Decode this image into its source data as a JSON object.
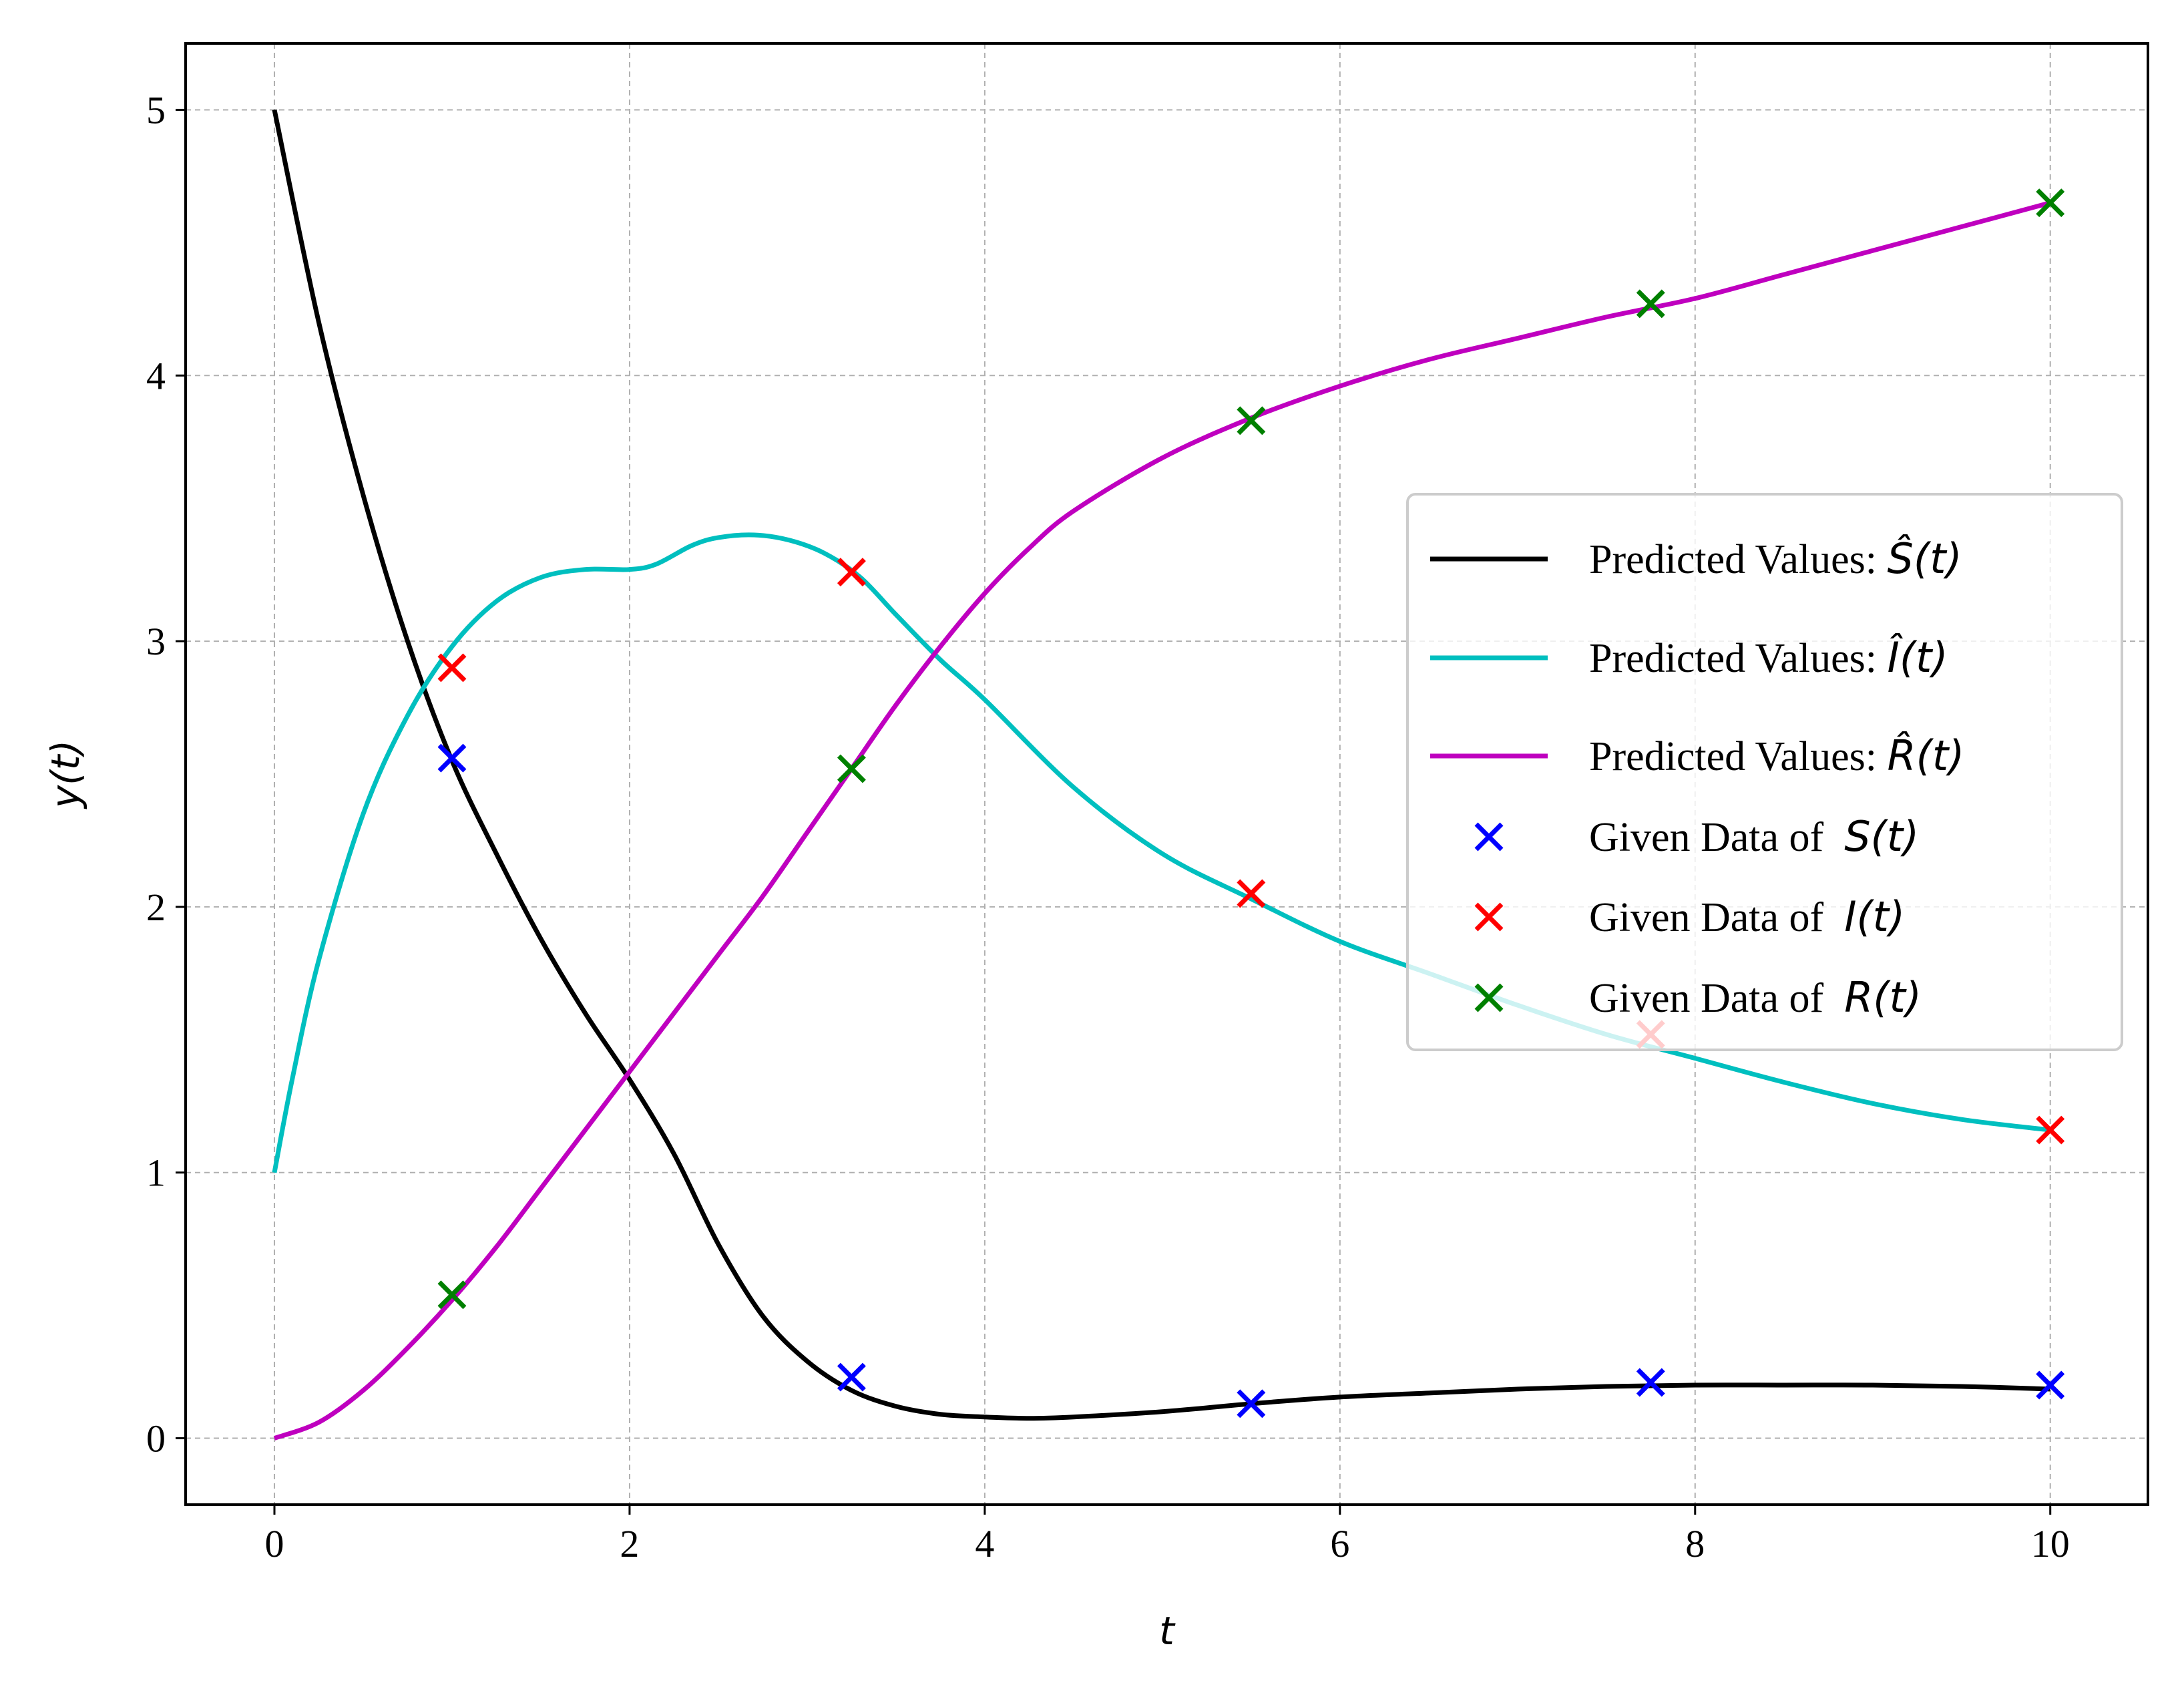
{
  "chart_data": {
    "type": "line",
    "xlabel": "t",
    "ylabel": "y(t)",
    "xlim": [
      -0.5,
      10.55
    ],
    "ylim": [
      -0.25,
      5.25
    ],
    "xticks": [
      0,
      2,
      4,
      6,
      8,
      10
    ],
    "yticks": [
      0,
      1,
      2,
      3,
      4,
      5
    ],
    "grid": true,
    "legend_position": "center-right",
    "series": [
      {
        "name": "Predicted Values: Ŝ(t)",
        "label_prefix": "Predicted Values:",
        "label_math": "Ŝ(t)",
        "kind": "line",
        "color": "#000000",
        "x": [
          0,
          0.25,
          0.5,
          0.75,
          1.0,
          1.25,
          1.5,
          1.75,
          2.0,
          2.25,
          2.5,
          2.75,
          3.0,
          3.25,
          3.5,
          3.75,
          4.0,
          4.25,
          4.5,
          5.0,
          5.5,
          6.0,
          6.5,
          7.0,
          7.5,
          8.0,
          8.5,
          9.0,
          9.5,
          10.0
        ],
        "y": [
          5.0,
          4.2,
          3.55,
          3.0,
          2.55,
          2.2,
          1.88,
          1.6,
          1.35,
          1.07,
          0.73,
          0.46,
          0.29,
          0.18,
          0.12,
          0.09,
          0.08,
          0.075,
          0.08,
          0.1,
          0.13,
          0.155,
          0.17,
          0.185,
          0.195,
          0.2,
          0.2,
          0.2,
          0.195,
          0.185
        ]
      },
      {
        "name": "Predicted Values: Î(t)",
        "label_prefix": "Predicted Values:",
        "label_math": "Î(t)",
        "kind": "line",
        "color": "#00BFBF",
        "x": [
          0,
          0.1,
          0.25,
          0.5,
          0.75,
          1.0,
          1.25,
          1.5,
          1.75,
          2.0,
          2.15,
          2.35,
          2.5,
          2.7,
          2.9,
          3.1,
          3.3,
          3.5,
          3.75,
          4.0,
          4.5,
          5.0,
          5.5,
          6.0,
          6.5,
          7.0,
          7.5,
          8.0,
          8.5,
          9.0,
          9.5,
          10.0
        ],
        "y": [
          1.0,
          1.35,
          1.8,
          2.35,
          2.72,
          2.98,
          3.15,
          3.24,
          3.27,
          3.27,
          3.29,
          3.36,
          3.39,
          3.4,
          3.38,
          3.33,
          3.24,
          3.1,
          2.93,
          2.78,
          2.45,
          2.2,
          2.03,
          1.87,
          1.75,
          1.63,
          1.52,
          1.43,
          1.34,
          1.26,
          1.2,
          1.16
        ]
      },
      {
        "name": "Predicted Values: R̂(t)",
        "label_prefix": "Predicted Values:",
        "label_math": "R̂(t)",
        "kind": "line",
        "color": "#BF00BF",
        "x": [
          0,
          0.25,
          0.5,
          0.75,
          1.0,
          1.25,
          1.5,
          1.75,
          2.0,
          2.25,
          2.5,
          2.75,
          3.0,
          3.25,
          3.5,
          3.75,
          4.0,
          4.25,
          4.5,
          5.0,
          5.5,
          6.0,
          6.5,
          7.0,
          7.5,
          8.0,
          8.5,
          9.0,
          9.5,
          10.0
        ],
        "y": [
          0.0,
          0.06,
          0.18,
          0.34,
          0.52,
          0.72,
          0.94,
          1.16,
          1.38,
          1.6,
          1.82,
          2.04,
          2.28,
          2.52,
          2.76,
          2.98,
          3.18,
          3.35,
          3.49,
          3.69,
          3.84,
          3.96,
          4.06,
          4.14,
          4.22,
          4.29,
          4.38,
          4.47,
          4.56,
          4.65
        ]
      },
      {
        "name": "Given Data of S(t)",
        "label_prefix": "Given Data of",
        "label_math": "S(t)",
        "kind": "scatter",
        "color": "#0000FF",
        "x": [
          1.0,
          3.25,
          5.5,
          7.75,
          10.0
        ],
        "y": [
          2.56,
          0.23,
          0.13,
          0.21,
          0.2
        ]
      },
      {
        "name": "Given Data of I(t)",
        "label_prefix": "Given Data of",
        "label_math": "I(t)",
        "kind": "scatter",
        "color": "#FF0000",
        "x": [
          1.0,
          3.25,
          5.5,
          7.75,
          10.0
        ],
        "y": [
          2.9,
          3.26,
          2.05,
          1.52,
          1.16
        ]
      },
      {
        "name": "Given Data of R(t)",
        "label_prefix": "Given Data of",
        "label_math": "R(t)",
        "kind": "scatter",
        "color": "#008000",
        "x": [
          1.0,
          3.25,
          5.5,
          7.75,
          10.0
        ],
        "y": [
          0.54,
          2.52,
          3.83,
          4.27,
          4.65
        ]
      }
    ]
  }
}
